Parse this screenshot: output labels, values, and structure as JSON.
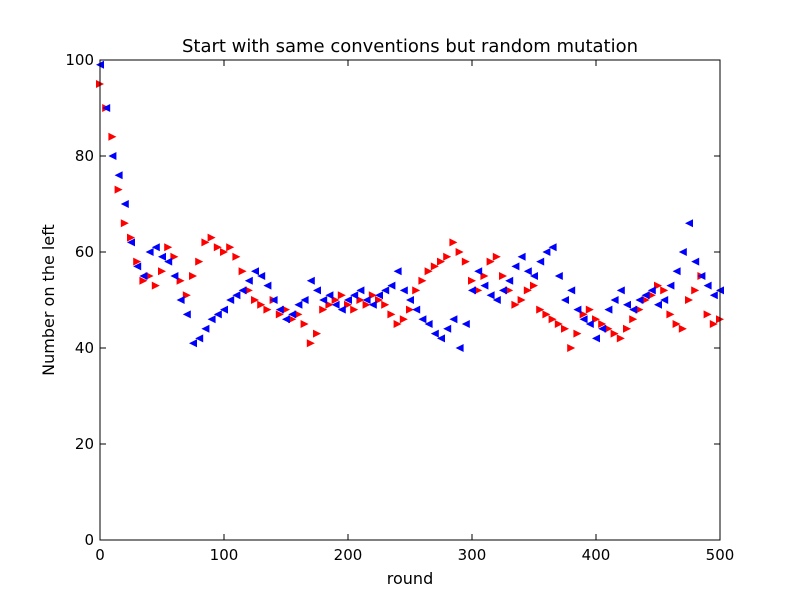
{
  "chart_data": {
    "type": "scatter",
    "title": "Start with same conventions but random mutation",
    "xlabel": "round",
    "ylabel": "Number on the left",
    "xlim": [
      0,
      500
    ],
    "ylim": [
      0,
      100
    ],
    "xticks": [
      0,
      100,
      200,
      300,
      400,
      500
    ],
    "yticks": [
      0,
      20,
      40,
      60,
      80,
      100
    ],
    "grid": false,
    "legend": "none",
    "series": [
      {
        "color": "#ff0000",
        "marker": "triangle-right",
        "x": [
          0,
          5,
          10,
          15,
          20,
          25,
          30,
          35,
          40,
          45,
          50,
          55,
          60,
          65,
          70,
          75,
          80,
          85,
          90,
          95,
          100,
          105,
          110,
          115,
          120,
          125,
          130,
          135,
          140,
          145,
          150,
          155,
          160,
          165,
          170,
          175,
          180,
          185,
          190,
          195,
          200,
          205,
          210,
          215,
          220,
          225,
          230,
          235,
          240,
          245,
          250,
          255,
          260,
          265,
          270,
          275,
          280,
          285,
          290,
          295,
          300,
          305,
          310,
          315,
          320,
          325,
          330,
          335,
          340,
          345,
          350,
          355,
          360,
          365,
          370,
          375,
          380,
          385,
          390,
          395,
          400,
          405,
          410,
          415,
          420,
          425,
          430,
          435,
          440,
          445,
          450,
          455,
          460,
          465,
          470,
          475,
          480,
          485,
          490,
          495,
          500
        ],
        "y": [
          95,
          90,
          84,
          73,
          66,
          63,
          58,
          54,
          55,
          53,
          56,
          61,
          59,
          54,
          51,
          55,
          58,
          62,
          63,
          61,
          60,
          61,
          59,
          56,
          52,
          50,
          49,
          48,
          50,
          47,
          48,
          46,
          47,
          45,
          41,
          43,
          48,
          49,
          50,
          51,
          49,
          48,
          50,
          49,
          51,
          50,
          49,
          47,
          45,
          46,
          48,
          52,
          54,
          56,
          57,
          58,
          59,
          62,
          60,
          58,
          54,
          52,
          55,
          58,
          59,
          55,
          52,
          49,
          50,
          52,
          53,
          48,
          47,
          46,
          45,
          44,
          40,
          43,
          47,
          48,
          46,
          45,
          44,
          43,
          42,
          44,
          46,
          48,
          50,
          51,
          53,
          52,
          47,
          45,
          44,
          50,
          52,
          55,
          47,
          45,
          46
        ]
      },
      {
        "color": "#0000ff",
        "marker": "triangle-left",
        "x": [
          0,
          5,
          10,
          15,
          20,
          25,
          30,
          35,
          40,
          45,
          50,
          55,
          60,
          65,
          70,
          75,
          80,
          85,
          90,
          95,
          100,
          105,
          110,
          115,
          120,
          125,
          130,
          135,
          140,
          145,
          150,
          155,
          160,
          165,
          170,
          175,
          180,
          185,
          190,
          195,
          200,
          205,
          210,
          215,
          220,
          225,
          230,
          235,
          240,
          245,
          250,
          255,
          260,
          265,
          270,
          275,
          280,
          285,
          290,
          295,
          300,
          305,
          310,
          315,
          320,
          325,
          330,
          335,
          340,
          345,
          350,
          355,
          360,
          365,
          370,
          375,
          380,
          385,
          390,
          395,
          400,
          405,
          410,
          415,
          420,
          425,
          430,
          435,
          440,
          445,
          450,
          455,
          460,
          465,
          470,
          475,
          480,
          485,
          490,
          495,
          500
        ],
        "y": [
          99,
          90,
          80,
          76,
          70,
          62,
          57,
          55,
          60,
          61,
          59,
          58,
          55,
          50,
          47,
          41,
          42,
          44,
          46,
          47,
          48,
          50,
          51,
          52,
          54,
          56,
          55,
          53,
          50,
          48,
          46,
          47,
          49,
          50,
          54,
          52,
          50,
          51,
          49,
          48,
          50,
          51,
          52,
          50,
          49,
          51,
          52,
          53,
          56,
          52,
          50,
          48,
          46,
          45,
          43,
          42,
          44,
          46,
          40,
          45,
          52,
          56,
          53,
          51,
          50,
          52,
          54,
          57,
          59,
          56,
          55,
          58,
          60,
          61,
          55,
          50,
          52,
          48,
          46,
          45,
          42,
          44,
          48,
          50,
          52,
          49,
          48,
          50,
          51,
          52,
          49,
          50,
          53,
          56,
          60,
          66,
          58,
          55,
          53,
          51,
          52
        ]
      }
    ]
  }
}
